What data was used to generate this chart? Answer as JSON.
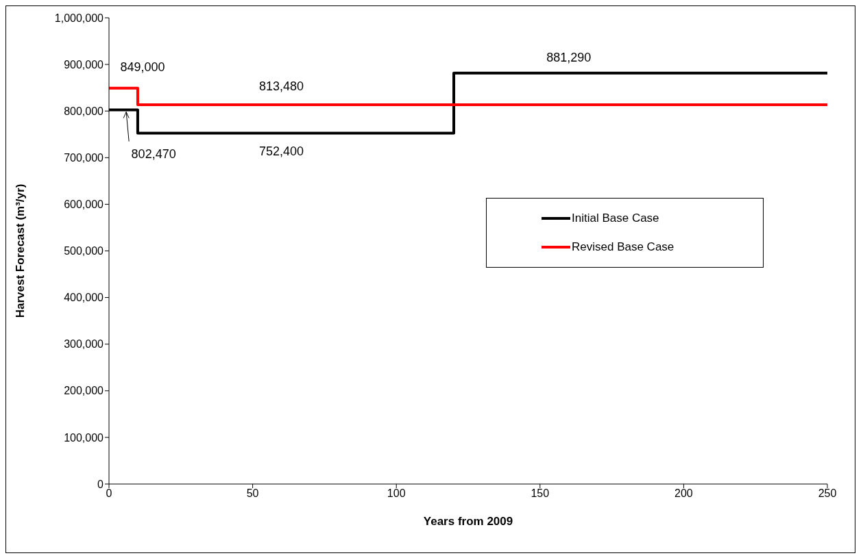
{
  "chart_data": {
    "type": "step",
    "xlabel": "Years from 2009",
    "ylabel": "Harvest Forecast (m³/yr)",
    "series": [
      {
        "name": "Initial Base Case",
        "color": "#000000",
        "x": [
          0,
          10,
          120,
          250
        ],
        "values": [
          802470,
          752400,
          881290,
          881290
        ]
      },
      {
        "name": "Revised Base Case",
        "color": "#ff0000",
        "x": [
          0,
          10,
          250
        ],
        "values": [
          849000,
          813480,
          813480
        ]
      }
    ],
    "xlim": [
      0,
      250
    ],
    "xticks": [
      0,
      50,
      100,
      150,
      200,
      250
    ],
    "ylim": [
      0,
      1000000
    ],
    "yticks": [
      {
        "value": 0,
        "label": "0"
      },
      {
        "value": 100000,
        "label": "100,000"
      },
      {
        "value": 200000,
        "label": "200,000"
      },
      {
        "value": 300000,
        "label": "300,000"
      },
      {
        "value": 400000,
        "label": "400,000"
      },
      {
        "value": 500000,
        "label": "500,000"
      },
      {
        "value": 600000,
        "label": "600,000"
      },
      {
        "value": 700000,
        "label": "700,000"
      },
      {
        "value": 800000,
        "label": "800,000"
      },
      {
        "value": 900000,
        "label": "900,000"
      },
      {
        "value": 1000000,
        "label": "1,000,000"
      }
    ],
    "annotations": [
      {
        "text": "802,470",
        "x": 6,
        "y": 802470
      },
      {
        "text": "849,000",
        "x": 5,
        "y": 849000
      },
      {
        "text": "813,480",
        "x": 60,
        "y": 813480
      },
      {
        "text": "752,400",
        "x": 60,
        "y": 752400
      },
      {
        "text": "881,290",
        "x": 160,
        "y": 881290
      }
    ],
    "legend": "right",
    "marker": "none",
    "line_style": "solid"
  }
}
